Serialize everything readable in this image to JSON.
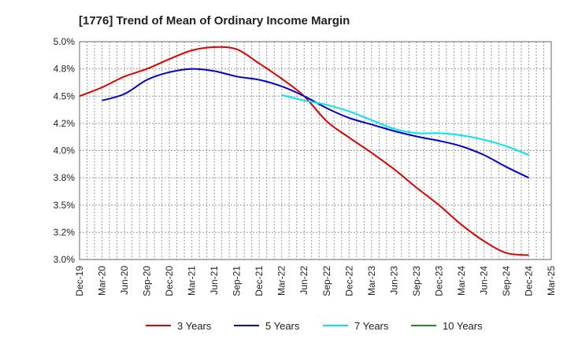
{
  "chart_data": {
    "type": "line",
    "title": "[1776]  Trend of Mean of Ordinary Income Margin",
    "xlabel": "",
    "ylabel": "",
    "x_ticks": [
      "Dec-19",
      "Mar-20",
      "Jun-20",
      "Sep-20",
      "Dec-20",
      "Mar-21",
      "Jun-21",
      "Sep-21",
      "Dec-21",
      "Mar-22",
      "Jun-22",
      "Sep-22",
      "Dec-22",
      "Mar-23",
      "Jun-23",
      "Sep-23",
      "Dec-23",
      "Mar-24",
      "Jun-24",
      "Sep-24",
      "Dec-24",
      "Mar-25"
    ],
    "y_ticks": [
      "3.0%",
      "3.2%",
      "3.5%",
      "3.8%",
      "4.0%",
      "4.2%",
      "4.5%",
      "4.8%",
      "5.0%"
    ],
    "ylim": [
      3.0,
      5.0
    ],
    "grid": true,
    "legend_position": "bottom",
    "series": [
      {
        "name": "3 Years",
        "color": "#dd0000",
        "points": [
          [
            "Dec-19",
            4.5
          ],
          [
            "Mar-20",
            4.58
          ],
          [
            "Jun-20",
            4.68
          ],
          [
            "Sep-20",
            4.75
          ],
          [
            "Dec-20",
            4.84
          ],
          [
            "Mar-21",
            4.92
          ],
          [
            "Jun-21",
            4.95
          ],
          [
            "Sep-21",
            4.93
          ],
          [
            "Dec-21",
            4.8
          ],
          [
            "Mar-22",
            4.66
          ],
          [
            "Jun-22",
            4.5
          ],
          [
            "Sep-22",
            4.27
          ],
          [
            "Dec-22",
            4.12
          ],
          [
            "Mar-23",
            3.98
          ],
          [
            "Jun-23",
            3.83
          ],
          [
            "Sep-23",
            3.66
          ],
          [
            "Dec-23",
            3.5
          ],
          [
            "Mar-24",
            3.32
          ],
          [
            "Jun-24",
            3.17
          ],
          [
            "Sep-24",
            3.06
          ],
          [
            "Dec-24",
            3.04
          ]
        ]
      },
      {
        "name": "5 Years",
        "color": "#0000cc",
        "points": [
          [
            "Mar-20",
            4.46
          ],
          [
            "Jun-20",
            4.52
          ],
          [
            "Sep-20",
            4.65
          ],
          [
            "Dec-20",
            4.72
          ],
          [
            "Mar-21",
            4.75
          ],
          [
            "Jun-21",
            4.73
          ],
          [
            "Sep-21",
            4.68
          ],
          [
            "Dec-21",
            4.65
          ],
          [
            "Mar-22",
            4.59
          ],
          [
            "Jun-22",
            4.5
          ],
          [
            "Sep-22",
            4.39
          ],
          [
            "Dec-22",
            4.3
          ],
          [
            "Mar-23",
            4.24
          ],
          [
            "Jun-23",
            4.18
          ],
          [
            "Sep-23",
            4.13
          ],
          [
            "Dec-23",
            4.09
          ],
          [
            "Mar-24",
            4.04
          ],
          [
            "Jun-24",
            3.96
          ],
          [
            "Sep-24",
            3.85
          ],
          [
            "Dec-24",
            3.75
          ]
        ]
      },
      {
        "name": "7 Years",
        "color": "#00e5ee",
        "points": [
          [
            "Mar-22",
            4.51
          ],
          [
            "Jun-22",
            4.46
          ],
          [
            "Sep-22",
            4.42
          ],
          [
            "Dec-22",
            4.36
          ],
          [
            "Mar-23",
            4.28
          ],
          [
            "Jun-23",
            4.2
          ],
          [
            "Sep-23",
            4.16
          ],
          [
            "Dec-23",
            4.16
          ],
          [
            "Mar-24",
            4.14
          ],
          [
            "Jun-24",
            4.1
          ],
          [
            "Sep-24",
            4.04
          ],
          [
            "Dec-24",
            3.96
          ]
        ]
      },
      {
        "name": "10 Years",
        "color": "#228b22",
        "points": []
      }
    ]
  }
}
